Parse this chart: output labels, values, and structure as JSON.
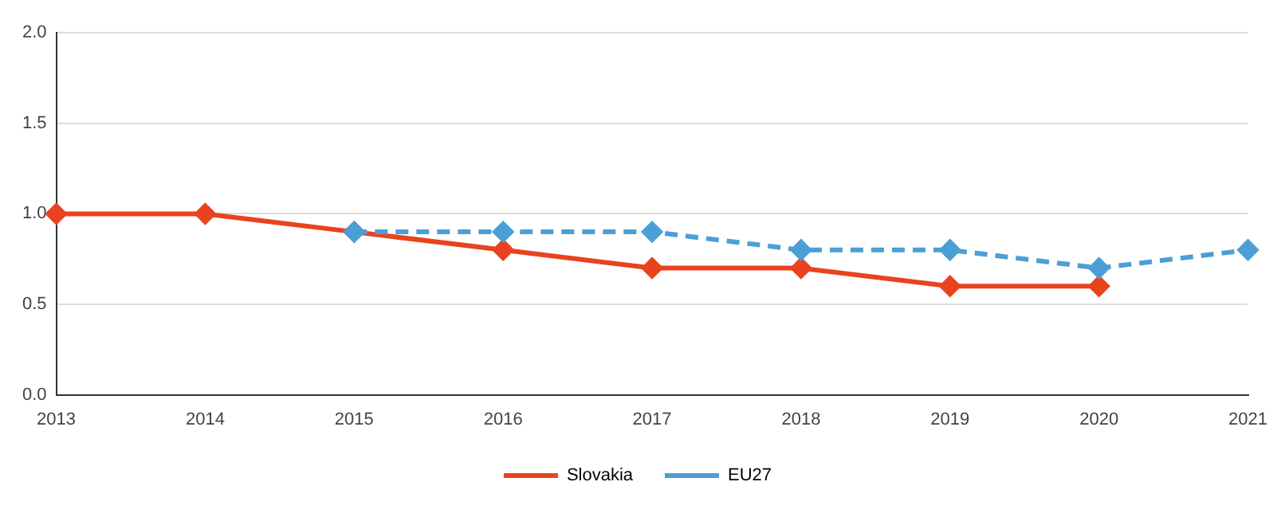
{
  "chart_data": {
    "type": "line",
    "categories": [
      "2013",
      "2014",
      "2015",
      "2016",
      "2017",
      "2018",
      "2019",
      "2020",
      "2021"
    ],
    "series": [
      {
        "name": "Slovakia",
        "color": "#e8431e",
        "values": [
          1.0,
          1.0,
          0.9,
          0.8,
          0.7,
          0.7,
          0.6,
          0.6,
          null
        ],
        "line_style": "solid"
      },
      {
        "name": "EU27",
        "color": "#4b9fd5",
        "values": [
          null,
          null,
          0.9,
          0.9,
          0.9,
          0.8,
          0.8,
          0.7,
          0.8
        ],
        "line_style": "dashed"
      }
    ],
    "ylim": [
      0,
      2
    ],
    "yticks": [
      {
        "value": 0,
        "label": "0.0"
      },
      {
        "value": 0.5,
        "label": "0.5"
      },
      {
        "value": 1,
        "label": "1.0"
      },
      {
        "value": 1.5,
        "label": "1.5"
      },
      {
        "value": 2,
        "label": "2.0"
      }
    ],
    "grid": "y",
    "legend": "bottom",
    "marker": "diamond"
  }
}
